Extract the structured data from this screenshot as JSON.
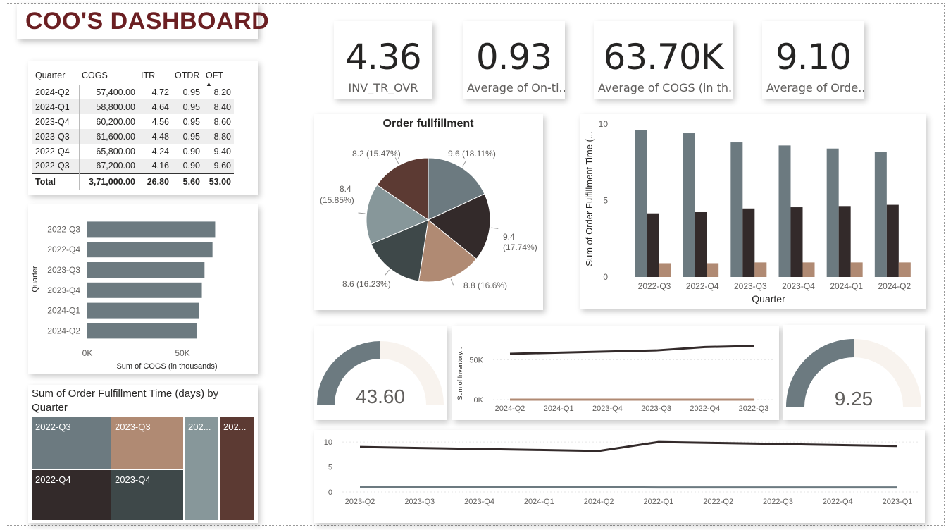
{
  "dashboard": {
    "title": "COO'S DASHBOARD"
  },
  "kpis": [
    {
      "value": "4.36",
      "label": "INV_TR_OVR"
    },
    {
      "value": "0.93",
      "label": "Average of On-ti..."
    },
    {
      "value": "63.70K",
      "label": "Average of COGS (in th..."
    },
    {
      "value": "9.10",
      "label": "Average of Orde..."
    }
  ],
  "matrix": {
    "columns": [
      "Quarter",
      "COGS",
      "ITR",
      "OTDR",
      "OFT"
    ],
    "rows": [
      [
        "2024-Q2",
        "57,400.00",
        "4.72",
        "0.95",
        "8.20"
      ],
      [
        "2024-Q1",
        "58,800.00",
        "4.64",
        "0.95",
        "8.40"
      ],
      [
        "2023-Q4",
        "60,200.00",
        "4.56",
        "0.95",
        "8.60"
      ],
      [
        "2023-Q3",
        "61,600.00",
        "4.48",
        "0.95",
        "8.80"
      ],
      [
        "2022-Q4",
        "65,800.00",
        "4.24",
        "0.90",
        "9.40"
      ],
      [
        "2022-Q3",
        "67,200.00",
        "4.16",
        "0.90",
        "9.60"
      ]
    ],
    "total": [
      "Total",
      "3,71,000.00",
      "26.80",
      "5.60",
      "53.00"
    ]
  },
  "colors": {
    "gray": "#6c7a80",
    "dark": "#332a2a",
    "tan": "#b08a73",
    "slate": "#3e4849",
    "light": "#87979a",
    "brown": "#5c3a33",
    "cream": "#f8f3ee",
    "title": "#6b1f22"
  },
  "treemap": {
    "title": "Sum of Order Fulfillment Time (days) by Quarter",
    "tiles": [
      "2022-Q3",
      "2023-Q3",
      "202...",
      "202...",
      "2022-Q4",
      "2023-Q4"
    ]
  },
  "gauges": [
    {
      "value_label": "43.60",
      "fraction": 0.5
    },
    {
      "value_label": "9.25",
      "fraction": 0.5
    }
  ],
  "chart_data": [
    {
      "id": "cogs-bar",
      "type": "bar",
      "orientation": "horizontal",
      "categories": [
        "2022-Q3",
        "2022-Q4",
        "2023-Q3",
        "2023-Q4",
        "2024-Q1",
        "2024-Q2"
      ],
      "values": [
        67200,
        65800,
        61600,
        60200,
        58800,
        57400
      ],
      "xlabel": "Sum of COGS (in thousands)",
      "ylabel": "Quarter",
      "xticks": [
        "0K",
        "50K"
      ],
      "xlim": [
        0,
        80000
      ]
    },
    {
      "id": "oft-pie",
      "type": "pie",
      "title": "Order fullfillment",
      "labels": [
        "9.6 (18.11%)",
        "9.4 (17.74%)",
        "8.8 (16.6%)",
        "8.6 (16.23%)",
        "8.4 (15.85%)",
        "8.2 (15.47%)"
      ],
      "values": [
        9.6,
        9.4,
        8.8,
        8.6,
        8.4,
        8.2
      ],
      "colors": [
        "#6c7a80",
        "#332a2a",
        "#b08a73",
        "#3e4849",
        "#87979a",
        "#5c3a33"
      ]
    },
    {
      "id": "quarter-columns",
      "type": "bar",
      "categories": [
        "2022-Q3",
        "2022-Q4",
        "2023-Q3",
        "2023-Q4",
        "2024-Q1",
        "2024-Q2"
      ],
      "series": [
        {
          "values": [
            9.6,
            9.4,
            8.8,
            8.6,
            8.4,
            8.2
          ],
          "color": "#6c7a80"
        },
        {
          "values": [
            4.16,
            4.24,
            4.48,
            4.56,
            4.64,
            4.72
          ],
          "color": "#332a2a"
        },
        {
          "values": [
            0.9,
            0.9,
            0.95,
            0.95,
            0.95,
            0.95
          ],
          "color": "#b08a73"
        }
      ],
      "xlabel": "Quarter",
      "ylabel": "Sum of Order Fulfillment Time (...",
      "yticks": [
        "0",
        "5",
        "10"
      ],
      "ylim": [
        0,
        10
      ]
    },
    {
      "id": "inventory-line",
      "type": "line",
      "categories": [
        "2024-Q2",
        "2024-Q1",
        "2023-Q4",
        "2023-Q3",
        "2022-Q4",
        "2022-Q3"
      ],
      "series": [
        {
          "values": [
            57400,
            58800,
            60200,
            61600,
            65800,
            67200
          ],
          "color": "#332a2a"
        },
        {
          "values": [
            4.72,
            4.64,
            4.56,
            4.48,
            4.24,
            4.16
          ],
          "color": "#b08a73"
        }
      ],
      "ylabel": "Sum of Inventory...",
      "yticks": [
        "0K",
        "50K"
      ],
      "ylim": [
        0,
        75000
      ]
    },
    {
      "id": "bottom-line",
      "type": "line",
      "categories": [
        "2023-Q2",
        "2023-Q3",
        "2023-Q4",
        "2024-Q1",
        "2024-Q2",
        "2022-Q1",
        "2022-Q2",
        "2022-Q3",
        "2022-Q4",
        "2023-Q1"
      ],
      "series": [
        {
          "values": [
            9.0,
            8.8,
            8.6,
            8.4,
            8.2,
            10.0,
            9.8,
            9.6,
            9.4,
            9.2
          ],
          "color": "#332a2a"
        },
        {
          "values": [
            0.95,
            0.95,
            0.95,
            0.95,
            0.95,
            0.9,
            0.9,
            0.9,
            0.9,
            0.9
          ],
          "color": "#6c7a80"
        }
      ],
      "yticks": [
        "0",
        "5",
        "10"
      ],
      "ylim": [
        0,
        11
      ]
    }
  ]
}
